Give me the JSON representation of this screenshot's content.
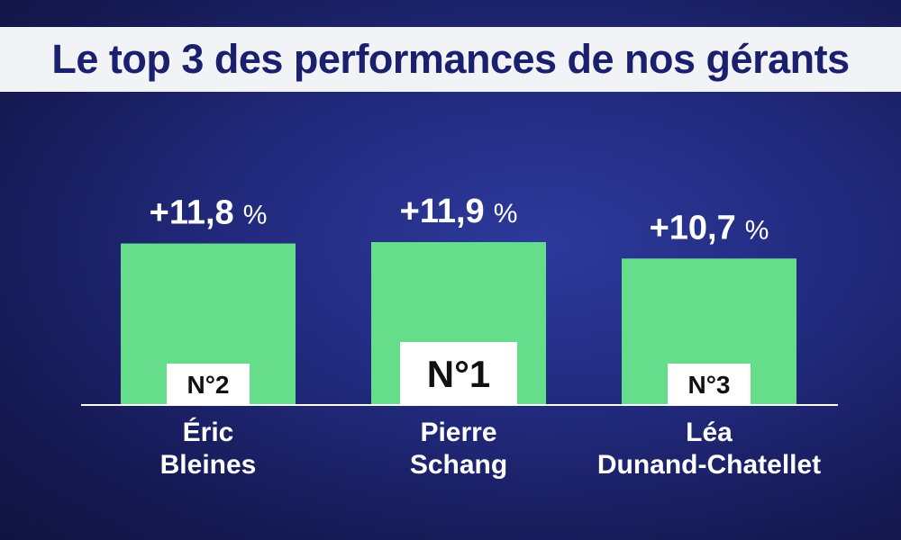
{
  "title": "Le top 3 des performances de nos gérants",
  "chart_data": {
    "type": "bar",
    "title": "Le top 3 des performances de nos gérants",
    "unit": "%",
    "categories": [
      "Éric Bleines",
      "Pierre Schang",
      "Léa Dunand-Chatellet"
    ],
    "name_lines": [
      [
        "Éric",
        "Bleines"
      ],
      [
        "Pierre",
        "Schang"
      ],
      [
        "Léa",
        "Dunand-Chatellet"
      ]
    ],
    "values": [
      11.8,
      11.9,
      10.7
    ],
    "value_labels": [
      "+11,8",
      "+11,9",
      "+10,7"
    ],
    "ranks": [
      "N°2",
      "N°1",
      "N°3"
    ],
    "ylim": [
      0,
      12
    ],
    "grid": false,
    "legend": "none",
    "colors": {
      "bar": "#66dd8a",
      "baseline": "#ffffff",
      "title_text": "#1a1f6e",
      "background": "#222a7e"
    }
  }
}
